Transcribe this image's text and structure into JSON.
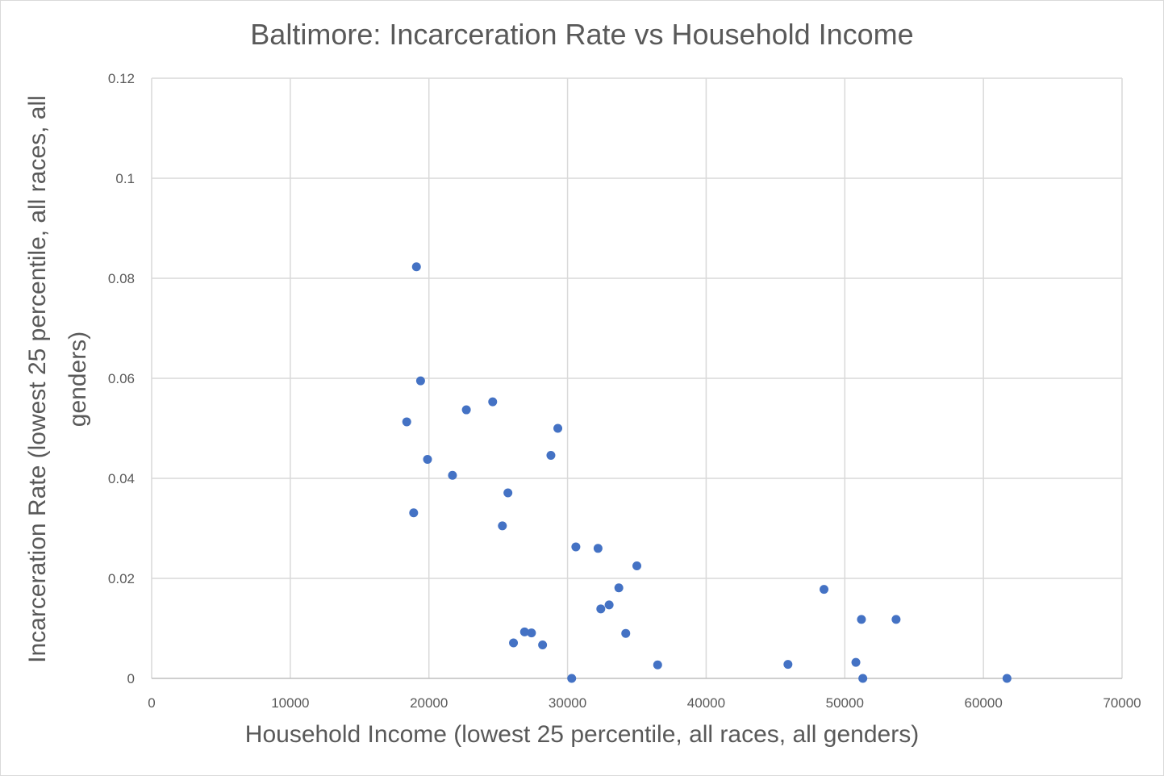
{
  "chart_data": {
    "type": "scatter",
    "title": "Baltimore: Incarceration Rate vs Household Income",
    "xlabel": "Household Income (lowest 25 percentile, all races, all genders)",
    "ylabel": "Incarceration Rate (lowest 25 percentile, all races, all genders)",
    "xlim": [
      0,
      70000
    ],
    "ylim": [
      0,
      0.12
    ],
    "xticks": [
      "0",
      "10000",
      "20000",
      "30000",
      "40000",
      "50000",
      "60000",
      "70000"
    ],
    "yticks": [
      "0",
      "0.02",
      "0.04",
      "0.06",
      "0.08",
      "0.1",
      "0.12"
    ],
    "grid": true,
    "legend": "none",
    "marker_color": "#4472c4",
    "points": [
      {
        "x": 19100,
        "y": 0.0823
      },
      {
        "x": 19400,
        "y": 0.0595
      },
      {
        "x": 18400,
        "y": 0.0513
      },
      {
        "x": 24600,
        "y": 0.0553
      },
      {
        "x": 22700,
        "y": 0.0537
      },
      {
        "x": 29300,
        "y": 0.05
      },
      {
        "x": 19900,
        "y": 0.0438
      },
      {
        "x": 28800,
        "y": 0.0446
      },
      {
        "x": 21700,
        "y": 0.0406
      },
      {
        "x": 25700,
        "y": 0.0371
      },
      {
        "x": 18900,
        "y": 0.0331
      },
      {
        "x": 25300,
        "y": 0.0305
      },
      {
        "x": 30600,
        "y": 0.0263
      },
      {
        "x": 32200,
        "y": 0.026
      },
      {
        "x": 35000,
        "y": 0.0225
      },
      {
        "x": 33700,
        "y": 0.0181
      },
      {
        "x": 48500,
        "y": 0.0178
      },
      {
        "x": 33000,
        "y": 0.0147
      },
      {
        "x": 32400,
        "y": 0.0139
      },
      {
        "x": 51200,
        "y": 0.0118
      },
      {
        "x": 53700,
        "y": 0.0118
      },
      {
        "x": 26900,
        "y": 0.0093
      },
      {
        "x": 27400,
        "y": 0.0091
      },
      {
        "x": 34200,
        "y": 0.009
      },
      {
        "x": 26100,
        "y": 0.0071
      },
      {
        "x": 28200,
        "y": 0.0067
      },
      {
        "x": 36500,
        "y": 0.0027
      },
      {
        "x": 45900,
        "y": 0.0028
      },
      {
        "x": 50800,
        "y": 0.0032
      },
      {
        "x": 30300,
        "y": 0.0
      },
      {
        "x": 51300,
        "y": 0.0
      },
      {
        "x": 61700,
        "y": 0.0
      }
    ]
  }
}
